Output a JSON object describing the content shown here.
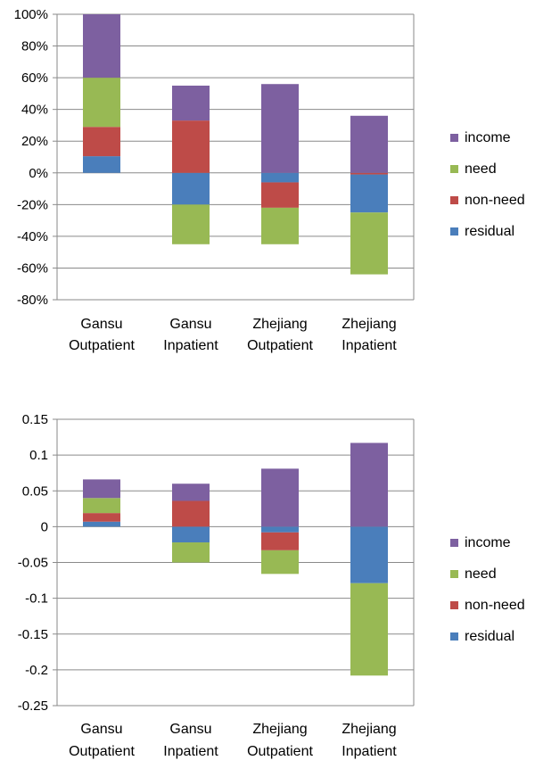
{
  "chart_data": [
    {
      "type": "bar",
      "stacked": true,
      "categories": [
        [
          "Gansu",
          "Outpatient"
        ],
        [
          "Gansu",
          "Inpatient"
        ],
        [
          "Zhejiang",
          "Outpatient"
        ],
        [
          "Zhejiang",
          "Inpatient"
        ]
      ],
      "yticks": [
        "100%",
        "80%",
        "60%",
        "40%",
        "20%",
        "0%",
        "-20%",
        "-40%",
        "-60%",
        "-80%"
      ],
      "ylim": [
        -80,
        100
      ],
      "yunit": "percent",
      "series": [
        {
          "name": "residual",
          "color": "#4a7ebb",
          "values": [
            [
              0,
              10.5
            ],
            [
              -20,
              0
            ],
            [
              -6,
              0
            ],
            [
              -25,
              -1
            ]
          ]
        },
        {
          "name": "non-need",
          "color": "#be4b48",
          "values": [
            [
              10.5,
              29
            ],
            [
              0,
              33
            ],
            [
              -22,
              -6
            ],
            [
              -1,
              0
            ]
          ]
        },
        {
          "name": "need",
          "color": "#98b954",
          "values": [
            [
              29,
              60
            ],
            [
              -45,
              -20
            ],
            [
              -45,
              -22
            ],
            [
              -64,
              -25
            ]
          ]
        },
        {
          "name": "income",
          "color": "#7d60a0",
          "values": [
            [
              60,
              100
            ],
            [
              33,
              55
            ],
            [
              0,
              56
            ],
            [
              0,
              36
            ]
          ]
        }
      ],
      "legend": [
        "income",
        "need",
        "non-need",
        "residual"
      ],
      "legend_position": "right"
    },
    {
      "type": "bar",
      "stacked": true,
      "categories": [
        [
          "Gansu",
          "Outpatient"
        ],
        [
          "Gansu",
          "Inpatient"
        ],
        [
          "Zhejiang",
          "Outpatient"
        ],
        [
          "Zhejiang",
          "Inpatient"
        ]
      ],
      "yticks": [
        "0.15",
        "0.1",
        "0.05",
        "0",
        "-0.05",
        "-0.1",
        "-0.15",
        "-0.2",
        "-0.25"
      ],
      "ylim": [
        -0.25,
        0.15
      ],
      "series": [
        {
          "name": "residual",
          "color": "#4a7ebb",
          "values": [
            [
              0,
              0.007
            ],
            [
              -0.022,
              0
            ],
            [
              -0.008,
              0
            ],
            [
              -0.079,
              0
            ]
          ]
        },
        {
          "name": "non-need",
          "color": "#be4b48",
          "values": [
            [
              0.007,
              0.019
            ],
            [
              0,
              0.036
            ],
            [
              -0.033,
              -0.008
            ],
            [
              -0.079,
              -0.079
            ]
          ]
        },
        {
          "name": "need",
          "color": "#98b954",
          "values": [
            [
              0.019,
              0.04
            ],
            [
              -0.05,
              -0.022
            ],
            [
              -0.066,
              -0.033
            ],
            [
              -0.208,
              -0.079
            ]
          ]
        },
        {
          "name": "income",
          "color": "#7d60a0",
          "values": [
            [
              0.04,
              0.066
            ],
            [
              0.036,
              0.06
            ],
            [
              0,
              0.081
            ],
            [
              0,
              0.117
            ]
          ]
        }
      ],
      "legend": [
        "income",
        "need",
        "non-need",
        "residual"
      ],
      "legend_position": "right"
    }
  ]
}
